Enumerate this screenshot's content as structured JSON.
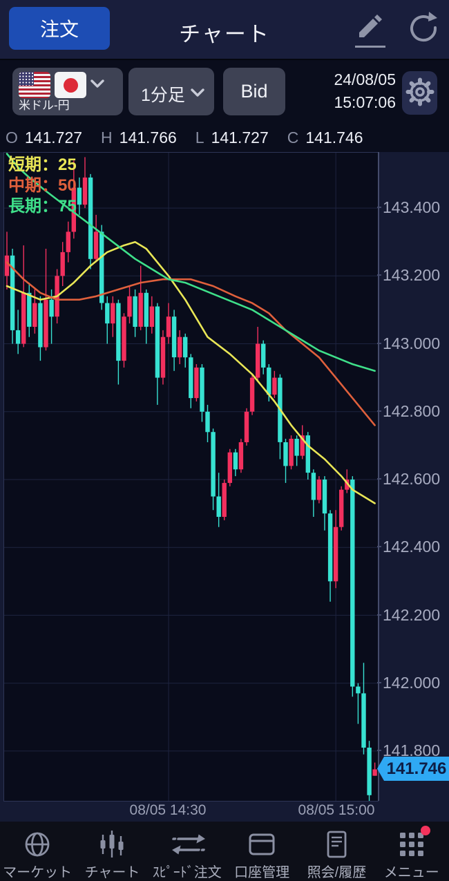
{
  "colors": {
    "accent_blue": "#1d4db4",
    "badge_blue": "#2fa9f4",
    "nav_badge_red": "#f4335c"
  },
  "header": {
    "order_button": "注文",
    "title": "チャート"
  },
  "toolbar": {
    "pair_label": "米ドル-円",
    "timeframe": "1分足",
    "price_side": "Bid",
    "date": "24/08/05",
    "time": "15:07:06"
  },
  "ohlc": {
    "o_label": "O",
    "o": "141.727",
    "h_label": "H",
    "h": "141.766",
    "l_label": "L",
    "l": "141.727",
    "c_label": "C",
    "c": "141.746"
  },
  "legend": [
    {
      "label": "短期：25",
      "color": "#e9e656"
    },
    {
      "label": "中期：50",
      "color": "#e0603c"
    },
    {
      "label": "長期：75",
      "color": "#3fe08a"
    }
  ],
  "chart_data": {
    "type": "candlestick",
    "pair": "米ドル-円",
    "interval": "1分足",
    "price_side": "Bid",
    "current_price": 141.746,
    "current_price_label": "141.746",
    "up_color": "#f2305e",
    "down_color": "#38e2d2",
    "grid": true,
    "ylim": [
      141.62,
      143.56
    ],
    "y_ticks": [
      143.4,
      143.2,
      143.0,
      142.8,
      142.6,
      142.4,
      142.2,
      142.0,
      141.8
    ],
    "y_tick_labels": [
      "143.400",
      "143.200",
      "143.000",
      "142.800",
      "142.600",
      "142.400",
      "142.200",
      "142.000",
      "141.800"
    ],
    "x_labels": [
      {
        "label": "08/05 14:30",
        "time": "14:30"
      },
      {
        "label": "08/05 15:00",
        "time": "15:00"
      }
    ],
    "times": [
      "14:01",
      "14:02",
      "14:03",
      "14:04",
      "14:05",
      "14:06",
      "14:07",
      "14:08",
      "14:09",
      "14:10",
      "14:11",
      "14:12",
      "14:13",
      "14:14",
      "14:15",
      "14:16",
      "14:17",
      "14:18",
      "14:19",
      "14:20",
      "14:21",
      "14:22",
      "14:23",
      "14:24",
      "14:25",
      "14:26",
      "14:27",
      "14:28",
      "14:29",
      "14:30",
      "14:31",
      "14:32",
      "14:33",
      "14:34",
      "14:35",
      "14:36",
      "14:37",
      "14:38",
      "14:39",
      "14:40",
      "14:41",
      "14:42",
      "14:43",
      "14:44",
      "14:45",
      "14:46",
      "14:47",
      "14:48",
      "14:49",
      "14:50",
      "14:51",
      "14:52",
      "14:53",
      "14:54",
      "14:55",
      "14:56",
      "14:57",
      "14:58",
      "14:59",
      "15:00",
      "15:01",
      "15:02",
      "15:03",
      "15:04",
      "15:05",
      "15:06",
      "15:07"
    ],
    "candles": [
      [
        143.2,
        143.33,
        143.16,
        143.26
      ],
      [
        143.26,
        143.28,
        143.0,
        143.04
      ],
      [
        143.04,
        143.1,
        142.97,
        143.0
      ],
      [
        143.0,
        143.29,
        142.99,
        143.15
      ],
      [
        143.15,
        143.18,
        143.02,
        143.05
      ],
      [
        143.05,
        143.16,
        143.03,
        143.12
      ],
      [
        143.12,
        143.14,
        142.95,
        142.99
      ],
      [
        142.99,
        143.28,
        142.98,
        143.13
      ],
      [
        143.13,
        143.16,
        143.0,
        143.08
      ],
      [
        143.08,
        143.22,
        143.06,
        143.2
      ],
      [
        143.2,
        143.3,
        143.17,
        143.27
      ],
      [
        143.27,
        143.36,
        143.24,
        143.33
      ],
      [
        143.33,
        143.54,
        143.31,
        143.46
      ],
      [
        143.46,
        143.49,
        143.38,
        143.41
      ],
      [
        143.41,
        143.55,
        143.4,
        143.49
      ],
      [
        143.49,
        143.5,
        143.22,
        143.25
      ],
      [
        143.25,
        143.38,
        143.24,
        143.33
      ],
      [
        143.33,
        143.35,
        143.1,
        143.12
      ],
      [
        143.12,
        143.14,
        143.0,
        143.06
      ],
      [
        143.06,
        143.14,
        143.02,
        143.12
      ],
      [
        143.12,
        143.13,
        142.88,
        142.95
      ],
      [
        142.95,
        143.09,
        142.93,
        143.08
      ],
      [
        143.08,
        143.17,
        143.06,
        143.14
      ],
      [
        143.14,
        143.16,
        143.02,
        143.05
      ],
      [
        143.05,
        143.23,
        143.04,
        143.15
      ],
      [
        143.15,
        143.16,
        143.0,
        143.05
      ],
      [
        143.05,
        143.14,
        143.03,
        143.11
      ],
      [
        143.11,
        143.12,
        142.82,
        142.9
      ],
      [
        142.9,
        143.04,
        142.88,
        143.02
      ],
      [
        143.02,
        143.12,
        143.0,
        143.08
      ],
      [
        143.08,
        143.1,
        142.92,
        142.96
      ],
      [
        142.96,
        143.04,
        142.94,
        143.02
      ],
      [
        143.02,
        143.03,
        142.93,
        142.96
      ],
      [
        142.96,
        142.97,
        142.81,
        142.84
      ],
      [
        142.84,
        142.94,
        142.83,
        142.93
      ],
      [
        142.93,
        142.94,
        142.77,
        142.8
      ],
      [
        142.8,
        142.82,
        142.71,
        142.74
      ],
      [
        142.74,
        142.75,
        142.51,
        142.55
      ],
      [
        142.55,
        142.62,
        142.46,
        142.49
      ],
      [
        142.49,
        142.6,
        142.48,
        142.59
      ],
      [
        142.59,
        142.69,
        142.58,
        142.68
      ],
      [
        142.68,
        142.69,
        142.61,
        142.63
      ],
      [
        142.63,
        142.72,
        142.62,
        142.71
      ],
      [
        142.71,
        142.81,
        142.7,
        142.8
      ],
      [
        142.8,
        142.91,
        142.79,
        142.9
      ],
      [
        142.9,
        143.05,
        142.89,
        143.0
      ],
      [
        143.0,
        143.01,
        142.91,
        142.93
      ],
      [
        142.93,
        142.94,
        142.83,
        142.85
      ],
      [
        142.85,
        142.92,
        142.84,
        142.9
      ],
      [
        142.9,
        142.91,
        142.66,
        142.71
      ],
      [
        142.71,
        142.72,
        142.59,
        142.64
      ],
      [
        142.64,
        142.73,
        142.63,
        142.72
      ],
      [
        142.72,
        142.73,
        142.64,
        142.67
      ],
      [
        142.67,
        142.76,
        142.66,
        142.73
      ],
      [
        142.73,
        142.74,
        142.6,
        142.62
      ],
      [
        142.62,
        142.63,
        142.49,
        142.54
      ],
      [
        142.54,
        142.61,
        142.53,
        142.6
      ],
      [
        142.6,
        142.61,
        142.45,
        142.5
      ],
      [
        142.5,
        142.51,
        142.24,
        142.3
      ],
      [
        142.3,
        142.51,
        142.28,
        142.46
      ],
      [
        142.46,
        142.58,
        142.45,
        142.57
      ],
      [
        142.57,
        142.63,
        142.56,
        142.6
      ],
      [
        142.6,
        142.61,
        141.96,
        141.99
      ],
      [
        141.99,
        142.0,
        141.88,
        141.97
      ],
      [
        141.97,
        142.06,
        141.79,
        141.81
      ],
      [
        141.81,
        141.83,
        141.64,
        141.67
      ],
      [
        141.727,
        141.766,
        141.727,
        141.746
      ]
    ],
    "moving_averages": [
      {
        "name": "短期",
        "period": 25,
        "color": "#e9e656",
        "points": [
          [
            0,
            143.17
          ],
          [
            3,
            143.15
          ],
          [
            6,
            143.13
          ],
          [
            9,
            143.14
          ],
          [
            12,
            143.18
          ],
          [
            15,
            143.23
          ],
          [
            18,
            143.27
          ],
          [
            21,
            143.29
          ],
          [
            23,
            143.3
          ],
          [
            25,
            143.28
          ],
          [
            29,
            143.2
          ],
          [
            32,
            143.13
          ],
          [
            36,
            143.02
          ],
          [
            40,
            142.97
          ],
          [
            44,
            142.91
          ],
          [
            48,
            142.83
          ],
          [
            51,
            142.76
          ],
          [
            54,
            142.7
          ],
          [
            57,
            142.66
          ],
          [
            60,
            142.61
          ],
          [
            62,
            142.57
          ],
          [
            64,
            142.55
          ],
          [
            66,
            142.53
          ]
        ]
      },
      {
        "name": "中期",
        "period": 50,
        "color": "#e0603c",
        "points": [
          [
            0,
            143.24
          ],
          [
            3,
            143.19
          ],
          [
            6,
            143.15
          ],
          [
            9,
            143.13
          ],
          [
            13,
            143.13
          ],
          [
            16,
            143.14
          ],
          [
            20,
            143.16
          ],
          [
            24,
            143.18
          ],
          [
            28,
            143.19
          ],
          [
            33,
            143.19
          ],
          [
            37,
            143.17
          ],
          [
            41,
            143.14
          ],
          [
            44,
            143.12
          ],
          [
            47,
            143.09
          ],
          [
            50,
            143.04
          ],
          [
            53,
            143.0
          ],
          [
            56,
            142.96
          ],
          [
            59,
            142.9
          ],
          [
            61,
            142.86
          ],
          [
            63,
            142.82
          ],
          [
            66,
            142.76
          ]
        ]
      },
      {
        "name": "長期",
        "period": 75,
        "color": "#3fe08a",
        "points": [
          [
            0,
            143.56
          ],
          [
            2,
            143.52
          ],
          [
            4,
            143.49
          ],
          [
            7,
            143.45
          ],
          [
            11,
            143.4
          ],
          [
            15,
            143.35
          ],
          [
            19,
            143.3
          ],
          [
            23,
            143.25
          ],
          [
            27,
            143.21
          ],
          [
            29,
            143.19
          ],
          [
            32,
            143.18
          ],
          [
            35,
            143.16
          ],
          [
            38,
            143.14
          ],
          [
            41,
            143.12
          ],
          [
            44,
            143.1
          ],
          [
            47,
            143.07
          ],
          [
            50,
            143.04
          ],
          [
            53,
            143.01
          ],
          [
            56,
            142.98
          ],
          [
            59,
            142.96
          ],
          [
            62,
            142.94
          ],
          [
            64,
            142.93
          ],
          [
            66,
            142.92
          ]
        ]
      }
    ]
  },
  "bottom_nav": [
    {
      "label": "マーケット",
      "icon": "globe-icon"
    },
    {
      "label": "チャート",
      "icon": "candlestick-icon"
    },
    {
      "label": "ｽﾋﾟｰﾄﾞ注文",
      "icon": "speed-arrows-icon"
    },
    {
      "label": "口座管理",
      "icon": "card-icon"
    },
    {
      "label": "照会/履歴",
      "icon": "document-icon"
    },
    {
      "label": "メニュー",
      "icon": "grid-icon",
      "badge": true
    }
  ]
}
